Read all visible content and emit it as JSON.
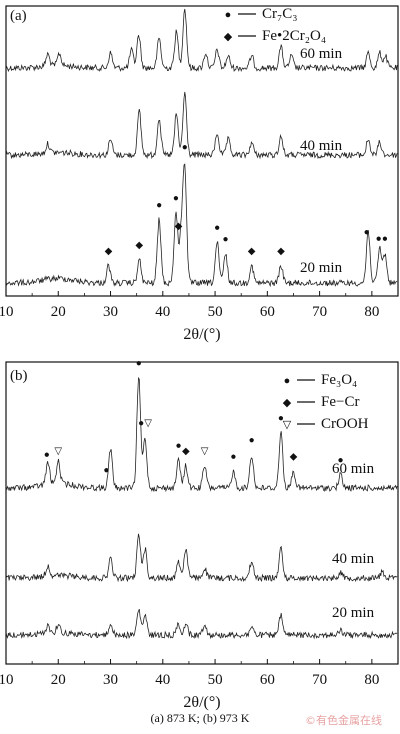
{
  "chart_data": [
    {
      "panel_label": "(a)",
      "type": "line",
      "xlabel": "2θ/(°)",
      "xlim": [
        10,
        85
      ],
      "xticks": [
        10,
        20,
        30,
        40,
        50,
        60,
        70,
        80
      ],
      "legend": [
        {
          "marker": "●",
          "name": "Cr7C3",
          "display": "Cr₇C₃"
        },
        {
          "marker": "◆",
          "name": "Fe·2Cr2O4",
          "display": "Fe•2Cr₂O₄"
        }
      ],
      "series": [
        {
          "name": "60 min",
          "peaks": [
            [
              18,
              0.2
            ],
            [
              20.2,
              0.2
            ],
            [
              30,
              0.25
            ],
            [
              34,
              0.3
            ],
            [
              35.4,
              0.55
            ],
            [
              39.3,
              0.5
            ],
            [
              42.6,
              0.6
            ],
            [
              44.2,
              1.0
            ],
            [
              48.2,
              0.25
            ],
            [
              50.4,
              0.3
            ],
            [
              52.5,
              0.2
            ],
            [
              57,
              0.2
            ],
            [
              62.6,
              0.35
            ],
            [
              64.6,
              0.2
            ],
            [
              79.3,
              0.25
            ],
            [
              81.5,
              0.25
            ],
            [
              82.6,
              0.2
            ]
          ]
        },
        {
          "name": "40 min",
          "peaks": [
            [
              18,
              0.15
            ],
            [
              30,
              0.25
            ],
            [
              35.5,
              0.7
            ],
            [
              39.3,
              0.6
            ],
            [
              42.6,
              0.65
            ],
            [
              44.2,
              1.0
            ],
            [
              50.4,
              0.35
            ],
            [
              52.5,
              0.25
            ],
            [
              57,
              0.2
            ],
            [
              62.6,
              0.3
            ],
            [
              79.3,
              0.25
            ],
            [
              81.5,
              0.2
            ]
          ]
        },
        {
          "name": "20 min",
          "peaks": [
            [
              29.6,
              0.15
            ],
            [
              35.5,
              0.2
            ],
            [
              39.3,
              0.55
            ],
            [
              42.5,
              0.6
            ],
            [
              43.5,
              0.4
            ],
            [
              44.2,
              1.0
            ],
            [
              50.4,
              0.35
            ],
            [
              52,
              0.25
            ],
            [
              57,
              0.15
            ],
            [
              62.6,
              0.15
            ],
            [
              79.3,
              0.45
            ],
            [
              81.5,
              0.3
            ],
            [
              82.5,
              0.25
            ]
          ]
        }
      ],
      "markers": [
        {
          "series": "20 min",
          "x": 29.6,
          "symbol": "◆"
        },
        {
          "series": "20 min",
          "x": 35.5,
          "symbol": "◆"
        },
        {
          "series": "20 min",
          "x": 39.3,
          "symbol": "●"
        },
        {
          "series": "20 min",
          "x": 42.5,
          "symbol": "●"
        },
        {
          "series": "20 min",
          "x": 43.0,
          "symbol": "◆"
        },
        {
          "series": "20 min",
          "x": 44.2,
          "symbol": "●"
        },
        {
          "series": "20 min",
          "x": 50.4,
          "symbol": "●"
        },
        {
          "series": "20 min",
          "x": 52.0,
          "symbol": "●"
        },
        {
          "series": "20 min",
          "x": 57.0,
          "symbol": "◆"
        },
        {
          "series": "20 min",
          "x": 62.6,
          "symbol": "◆"
        },
        {
          "series": "20 min",
          "x": 79.0,
          "symbol": "●"
        },
        {
          "series": "20 min",
          "x": 81.3,
          "symbol": "●"
        },
        {
          "series": "20 min",
          "x": 82.5,
          "symbol": "●"
        }
      ]
    },
    {
      "panel_label": "(b)",
      "type": "line",
      "xlabel": "2θ/(°)",
      "xlim": [
        10,
        85
      ],
      "xticks": [
        10,
        20,
        30,
        40,
        50,
        60,
        70,
        80
      ],
      "legend": [
        {
          "marker": "●",
          "name": "Fe3O4",
          "display": "Fe₃O₄"
        },
        {
          "marker": "◆",
          "name": "Fe−Cr",
          "display": "Fe−Cr"
        },
        {
          "marker": "▽",
          "name": "CrOOH",
          "display": "CrOOH"
        }
      ],
      "series": [
        {
          "name": "60 min",
          "peaks": [
            [
              18,
              0.2
            ],
            [
              20,
              0.2
            ],
            [
              30,
              0.35
            ],
            [
              35.4,
              1.0
            ],
            [
              36.6,
              0.45
            ],
            [
              43,
              0.25
            ],
            [
              44.4,
              0.2
            ],
            [
              48,
              0.2
            ],
            [
              53.5,
              0.15
            ],
            [
              57,
              0.3
            ],
            [
              62.6,
              0.5
            ],
            [
              65,
              0.15
            ],
            [
              74,
              0.12
            ]
          ]
        },
        {
          "name": "40 min",
          "peaks": [
            [
              18,
              0.15
            ],
            [
              30,
              0.3
            ],
            [
              35.4,
              0.65
            ],
            [
              36.6,
              0.45
            ],
            [
              43,
              0.25
            ],
            [
              44.4,
              0.45
            ],
            [
              48,
              0.15
            ],
            [
              57,
              0.25
            ],
            [
              62.6,
              0.45
            ],
            [
              74,
              0.1
            ],
            [
              82,
              0.1
            ]
          ]
        },
        {
          "name": "20 min",
          "peaks": [
            [
              18,
              0.15
            ],
            [
              20,
              0.15
            ],
            [
              30,
              0.2
            ],
            [
              35.4,
              0.45
            ],
            [
              36.6,
              0.35
            ],
            [
              43,
              0.2
            ],
            [
              44.4,
              0.2
            ],
            [
              48,
              0.2
            ],
            [
              57,
              0.15
            ],
            [
              62.6,
              0.35
            ],
            [
              74,
              0.08
            ]
          ]
        }
      ],
      "markers": [
        {
          "series": "60 min",
          "x": 17.8,
          "symbol": "●"
        },
        {
          "series": "60 min",
          "x": 20.0,
          "symbol": "▽"
        },
        {
          "series": "60 min",
          "x": 29.2,
          "symbol": "●"
        },
        {
          "series": "60 min",
          "x": 35.4,
          "symbol": "●"
        },
        {
          "series": "60 min",
          "x": 36.6,
          "symbol": "●▽"
        },
        {
          "series": "60 min",
          "x": 43.0,
          "symbol": "●"
        },
        {
          "series": "60 min",
          "x": 44.4,
          "symbol": "◆"
        },
        {
          "series": "60 min",
          "x": 48.0,
          "symbol": "▽"
        },
        {
          "series": "60 min",
          "x": 53.5,
          "symbol": "●"
        },
        {
          "series": "60 min",
          "x": 57.0,
          "symbol": "●"
        },
        {
          "series": "60 min",
          "x": 62.6,
          "symbol": "●"
        },
        {
          "series": "60 min",
          "x": 65.0,
          "symbol": "◆"
        },
        {
          "series": "60 min",
          "x": 74.0,
          "symbol": "●"
        }
      ]
    }
  ],
  "caption": "(a) 873 K; (b) 973 K",
  "watermark": "©有色金属在线"
}
